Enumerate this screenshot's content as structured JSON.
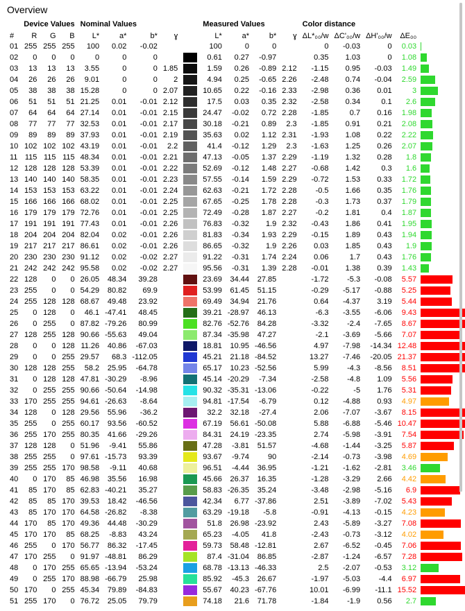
{
  "title": "Overview",
  "headers": {
    "groups": {
      "device": "Device Values",
      "nominal": "Nominal Values",
      "measured": "Measured Values",
      "dist": "Color distance"
    },
    "cols": {
      "num": "#",
      "r": "R",
      "g": "G",
      "b": "B",
      "nL": "L*",
      "na": "a*",
      "nb": "b*",
      "ng": "ɣ",
      "mL": "L*",
      "ma": "a*",
      "mb": "b*",
      "mg": "ɣ",
      "dL": "ΔL*₀₀/w",
      "dC": "ΔC'₀₀/w",
      "dH": "ΔH'₀₀/w",
      "dE": "ΔE₀₀"
    }
  },
  "bar": {
    "max": 22,
    "base_width": 180,
    "colors": {
      "green": "#2fd82f",
      "red": "#ff0000",
      "orange": "#ff9c00"
    }
  },
  "rows": [
    {
      "n": "01",
      "r": 255,
      "g": 255,
      "b": 255,
      "nL": "100",
      "na": "0.02",
      "nb": "-0.02",
      "ng": "",
      "sw": "#ffffff",
      "mL": "100",
      "ma": "0",
      "mb": "0",
      "mg": "",
      "dL": "0",
      "dC": "-0.03",
      "dH": "0",
      "dE": "0.03",
      "bc": "green",
      "bv": 0.03
    },
    {
      "n": "02",
      "r": 0,
      "g": 0,
      "b": 0,
      "nL": "0",
      "na": "0",
      "nb": "0",
      "ng": "",
      "sw": "#000000",
      "mL": "0.61",
      "ma": "0.27",
      "mb": "-0.97",
      "mg": "",
      "dL": "0.35",
      "dC": "1.03",
      "dH": "0",
      "dE": "1.08",
      "bc": "green",
      "bv": 1.08
    },
    {
      "n": "03",
      "r": 13,
      "g": 13,
      "b": 13,
      "nL": "3.55",
      "na": "0",
      "nb": "0",
      "ng": "1.85",
      "sw": "#0b0b0b",
      "mL": "1.59",
      "ma": "0.26",
      "mb": "-0.89",
      "mg": "2.12",
      "dL": "-1.15",
      "dC": "0.95",
      "dH": "-0.03",
      "dE": "1.49",
      "bc": "green",
      "bv": 1.49
    },
    {
      "n": "04",
      "r": 26,
      "g": 26,
      "b": 26,
      "nL": "9.01",
      "na": "0",
      "nb": "0",
      "ng": "2",
      "sw": "#161616",
      "mL": "4.94",
      "ma": "0.25",
      "mb": "-0.65",
      "mg": "2.26",
      "dL": "-2.48",
      "dC": "0.74",
      "dH": "-0.04",
      "dE": "2.59",
      "bc": "green",
      "bv": 2.59
    },
    {
      "n": "05",
      "r": 38,
      "g": 38,
      "b": 38,
      "nL": "15.28",
      "na": "0",
      "nb": "0",
      "ng": "2.07",
      "sw": "#222222",
      "mL": "10.65",
      "ma": "0.22",
      "mb": "-0.16",
      "mg": "2.33",
      "dL": "-2.98",
      "dC": "0.36",
      "dH": "0.01",
      "dE": "3",
      "bc": "green",
      "bv": 3
    },
    {
      "n": "06",
      "r": 51,
      "g": 51,
      "b": 51,
      "nL": "21.25",
      "na": "0.01",
      "nb": "-0.01",
      "ng": "2.12",
      "sw": "#2e2e2e",
      "mL": "17.5",
      "ma": "0.03",
      "mb": "0.35",
      "mg": "2.32",
      "dL": "-2.58",
      "dC": "0.34",
      "dH": "0.1",
      "dE": "2.6",
      "bc": "green",
      "bv": 2.6
    },
    {
      "n": "07",
      "r": 64,
      "g": 64,
      "b": 64,
      "nL": "27.14",
      "na": "0.01",
      "nb": "-0.01",
      "ng": "2.15",
      "sw": "#3a3a3a",
      "mL": "24.47",
      "ma": "-0.02",
      "mb": "0.72",
      "mg": "2.28",
      "dL": "-1.85",
      "dC": "0.7",
      "dH": "0.16",
      "dE": "1.98",
      "bc": "green",
      "bv": 1.98
    },
    {
      "n": "08",
      "r": 77,
      "g": 77,
      "b": 77,
      "nL": "32.53",
      "na": "0.01",
      "nb": "-0.01",
      "ng": "2.17",
      "sw": "#474747",
      "mL": "30.18",
      "ma": "-0.21",
      "mb": "0.89",
      "mg": "2.3",
      "dL": "-1.85",
      "dC": "0.91",
      "dH": "0.21",
      "dE": "2.08",
      "bc": "green",
      "bv": 2.08
    },
    {
      "n": "09",
      "r": 89,
      "g": 89,
      "b": 89,
      "nL": "37.93",
      "na": "0.01",
      "nb": "-0.01",
      "ng": "2.19",
      "sw": "#535353",
      "mL": "35.63",
      "ma": "0.02",
      "mb": "1.12",
      "mg": "2.31",
      "dL": "-1.93",
      "dC": "1.08",
      "dH": "0.22",
      "dE": "2.22",
      "bc": "green",
      "bv": 2.22
    },
    {
      "n": "10",
      "r": 102,
      "g": 102,
      "b": 102,
      "nL": "43.19",
      "na": "0.01",
      "nb": "-0.01",
      "ng": "2.2",
      "sw": "#606060",
      "mL": "41.4",
      "ma": "-0.12",
      "mb": "1.29",
      "mg": "2.3",
      "dL": "-1.63",
      "dC": "1.25",
      "dH": "0.26",
      "dE": "2.07",
      "bc": "green",
      "bv": 2.07
    },
    {
      "n": "11",
      "r": 115,
      "g": 115,
      "b": 115,
      "nL": "48.34",
      "na": "0.01",
      "nb": "-0.01",
      "ng": "2.21",
      "sw": "#6d6d6d",
      "mL": "47.13",
      "ma": "-0.05",
      "mb": "1.37",
      "mg": "2.29",
      "dL": "-1.19",
      "dC": "1.32",
      "dH": "0.28",
      "dE": "1.8",
      "bc": "green",
      "bv": 1.8
    },
    {
      "n": "12",
      "r": 128,
      "g": 128,
      "b": 128,
      "nL": "53.39",
      "na": "0.01",
      "nb": "-0.01",
      "ng": "2.22",
      "sw": "#7b7b7b",
      "mL": "52.69",
      "ma": "-0.12",
      "mb": "1.48",
      "mg": "2.27",
      "dL": "-0.68",
      "dC": "1.42",
      "dH": "0.3",
      "dE": "1.6",
      "bc": "green",
      "bv": 1.6
    },
    {
      "n": "13",
      "r": 140,
      "g": 140,
      "b": 140,
      "nL": "58.35",
      "na": "0.01",
      "nb": "-0.01",
      "ng": "2.23",
      "sw": "#898989",
      "mL": "57.55",
      "ma": "-0.14",
      "mb": "1.59",
      "mg": "2.29",
      "dL": "-0.72",
      "dC": "1.53",
      "dH": "0.33",
      "dE": "1.72",
      "bc": "green",
      "bv": 1.72
    },
    {
      "n": "14",
      "r": 153,
      "g": 153,
      "b": 153,
      "nL": "63.22",
      "na": "0.01",
      "nb": "-0.01",
      "ng": "2.24",
      "sw": "#979797",
      "mL": "62.63",
      "ma": "-0.21",
      "mb": "1.72",
      "mg": "2.28",
      "dL": "-0.5",
      "dC": "1.66",
      "dH": "0.35",
      "dE": "1.76",
      "bc": "green",
      "bv": 1.76
    },
    {
      "n": "15",
      "r": 166,
      "g": 166,
      "b": 166,
      "nL": "68.02",
      "na": "0.01",
      "nb": "-0.01",
      "ng": "2.25",
      "sw": "#a5a5a5",
      "mL": "67.65",
      "ma": "-0.25",
      "mb": "1.78",
      "mg": "2.28",
      "dL": "-0.3",
      "dC": "1.73",
      "dH": "0.37",
      "dE": "1.79",
      "bc": "green",
      "bv": 1.79
    },
    {
      "n": "16",
      "r": 179,
      "g": 179,
      "b": 179,
      "nL": "72.76",
      "na": "0.01",
      "nb": "-0.01",
      "ng": "2.25",
      "sw": "#b3b3b3",
      "mL": "72.49",
      "ma": "-0.28",
      "mb": "1.87",
      "mg": "2.27",
      "dL": "-0.2",
      "dC": "1.81",
      "dH": "0.4",
      "dE": "1.87",
      "bc": "green",
      "bv": 1.87
    },
    {
      "n": "17",
      "r": 191,
      "g": 191,
      "b": 191,
      "nL": "77.43",
      "na": "0.01",
      "nb": "-0.01",
      "ng": "2.26",
      "sw": "#c1c1c1",
      "mL": "76.83",
      "ma": "-0.32",
      "mb": "1.9",
      "mg": "2.32",
      "dL": "-0.43",
      "dC": "1.86",
      "dH": "0.41",
      "dE": "1.95",
      "bc": "green",
      "bv": 1.95
    },
    {
      "n": "18",
      "r": 204,
      "g": 204,
      "b": 204,
      "nL": "82.04",
      "na": "0.02",
      "nb": "-0.01",
      "ng": "2.26",
      "sw": "#cfcfcf",
      "mL": "81.83",
      "ma": "-0.34",
      "mb": "1.93",
      "mg": "2.29",
      "dL": "-0.15",
      "dC": "1.89",
      "dH": "0.43",
      "dE": "1.94",
      "bc": "green",
      "bv": 1.94
    },
    {
      "n": "19",
      "r": 217,
      "g": 217,
      "b": 217,
      "nL": "86.61",
      "na": "0.02",
      "nb": "-0.01",
      "ng": "2.26",
      "sw": "#dddddd",
      "mL": "86.65",
      "ma": "-0.32",
      "mb": "1.9",
      "mg": "2.26",
      "dL": "0.03",
      "dC": "1.85",
      "dH": "0.43",
      "dE": "1.9",
      "bc": "green",
      "bv": 1.9
    },
    {
      "n": "20",
      "r": 230,
      "g": 230,
      "b": 230,
      "nL": "91.12",
      "na": "0.02",
      "nb": "-0.02",
      "ng": "2.27",
      "sw": "#ebebeb",
      "mL": "91.22",
      "ma": "-0.31",
      "mb": "1.74",
      "mg": "2.24",
      "dL": "0.06",
      "dC": "1.7",
      "dH": "0.43",
      "dE": "1.76",
      "bc": "green",
      "bv": 1.76
    },
    {
      "n": "21",
      "r": 242,
      "g": 242,
      "b": 242,
      "nL": "95.58",
      "na": "0.02",
      "nb": "-0.02",
      "ng": "2.27",
      "sw": "#f6f6f6",
      "mL": "95.56",
      "ma": "-0.31",
      "mb": "1.39",
      "mg": "2.28",
      "dL": "-0.01",
      "dC": "1.38",
      "dH": "0.39",
      "dE": "1.43",
      "bc": "green",
      "bv": 1.43
    },
    {
      "n": "22",
      "r": 128,
      "g": 0,
      "b": 0,
      "nL": "26.05",
      "na": "48.34",
      "nb": "39.28",
      "ng": "",
      "sw": "#611010",
      "mL": "23.69",
      "ma": "34.44",
      "mb": "27.85",
      "mg": "",
      "dL": "-1.72",
      "dC": "-5.3",
      "dH": "-0.08",
      "dE": "5.57",
      "bc": "red",
      "bv": 5.57
    },
    {
      "n": "23",
      "r": 255,
      "g": 0,
      "b": 0,
      "nL": "54.29",
      "na": "80.82",
      "nb": "69.9",
      "ng": "",
      "sw": "#e02020",
      "mL": "53.99",
      "ma": "61.45",
      "mb": "51.15",
      "mg": "",
      "dL": "-0.29",
      "dC": "-5.17",
      "dH": "-0.88",
      "dE": "5.25",
      "bc": "red",
      "bv": 5.25
    },
    {
      "n": "24",
      "r": 255,
      "g": 128,
      "b": 128,
      "nL": "68.67",
      "na": "49.48",
      "nb": "23.92",
      "ng": "",
      "sw": "#ef7369",
      "mL": "69.49",
      "ma": "34.94",
      "mb": "21.76",
      "mg": "",
      "dL": "0.64",
      "dC": "-4.37",
      "dH": "3.19",
      "dE": "5.44",
      "bc": "red",
      "bv": 5.44
    },
    {
      "n": "25",
      "r": 0,
      "g": 128,
      "b": 0,
      "nL": "46.1",
      "na": "-47.41",
      "nb": "48.45",
      "ng": "",
      "sw": "#246e17",
      "mL": "39.21",
      "ma": "-28.97",
      "mb": "46.13",
      "mg": "",
      "dL": "-6.3",
      "dC": "-3.55",
      "dH": "-6.06",
      "dE": "9.43",
      "bc": "red",
      "bv": 9.43
    },
    {
      "n": "26",
      "r": 0,
      "g": 255,
      "b": 0,
      "nL": "87.82",
      "na": "-79.26",
      "nb": "80.99",
      "ng": "",
      "sw": "#4be023",
      "mL": "82.76",
      "ma": "-52.76",
      "mb": "84.28",
      "mg": "",
      "dL": "-3.32",
      "dC": "-2.4",
      "dH": "-7.65",
      "dE": "8.67",
      "bc": "red",
      "bv": 8.67
    },
    {
      "n": "27",
      "r": 128,
      "g": 255,
      "b": 128,
      "nL": "90.66",
      "na": "-55.63",
      "nb": "49.04",
      "ng": "",
      "sw": "#8cea6e",
      "mL": "87.34",
      "ma": "-35.98",
      "mb": "47.27",
      "mg": "",
      "dL": "-2.1",
      "dC": "-3.69",
      "dH": "-5.66",
      "dE": "7.07",
      "bc": "red",
      "bv": 7.07
    },
    {
      "n": "28",
      "r": 0,
      "g": 0,
      "b": 128,
      "nL": "11.26",
      "na": "40.86",
      "nb": "-67.03",
      "ng": "",
      "sw": "#0e1867",
      "mL": "18.81",
      "ma": "10.95",
      "mb": "-46.56",
      "mg": "",
      "dL": "4.97",
      "dC": "-7.98",
      "dH": "-14.34",
      "dE": "12.48",
      "bc": "red",
      "bv": 12.48
    },
    {
      "n": "29",
      "r": 0,
      "g": 0,
      "b": 255,
      "nL": "29.57",
      "na": "68.3",
      "nb": "-112.05",
      "ng": "",
      "sw": "#2038d2",
      "mL": "45.21",
      "ma": "21.18",
      "mb": "-84.52",
      "mg": "",
      "dL": "13.27",
      "dC": "-7.46",
      "dH": "-20.05",
      "dE": "21.37",
      "bc": "red",
      "bv": 21.37
    },
    {
      "n": "30",
      "r": 128,
      "g": 128,
      "b": 255,
      "nL": "58.2",
      "na": "25.95",
      "nb": "-64.78",
      "ng": "",
      "sw": "#7485e8",
      "mL": "65.17",
      "ma": "10.23",
      "mb": "-52.56",
      "mg": "",
      "dL": "5.99",
      "dC": "-4.3",
      "dH": "-8.56",
      "dE": "8.51",
      "bc": "red",
      "bv": 8.51
    },
    {
      "n": "31",
      "r": 0,
      "g": 128,
      "b": 128,
      "nL": "47.81",
      "na": "-30.29",
      "nb": "-8.96",
      "ng": "",
      "sw": "#127174",
      "mL": "45.14",
      "ma": "-20.29",
      "mb": "-7.34",
      "mg": "",
      "dL": "-2.58",
      "dC": "-4.8",
      "dH": "1.09",
      "dE": "5.56",
      "bc": "red",
      "bv": 5.56
    },
    {
      "n": "32",
      "r": 0,
      "g": 255,
      "b": 255,
      "nL": "90.66",
      "na": "-50.64",
      "nb": "-14.98",
      "ng": "",
      "sw": "#26e2e6",
      "mL": "90.32",
      "ma": "-35.31",
      "mb": "-13.06",
      "mg": "",
      "dL": "-0.22",
      "dC": "-5",
      "dH": "1.76",
      "dE": "5.31",
      "bc": "red",
      "bv": 5.31
    },
    {
      "n": "33",
      "r": 170,
      "g": 255,
      "b": 255,
      "nL": "94.61",
      "na": "-26.63",
      "nb": "-8.64",
      "ng": "",
      "sw": "#a6eff1",
      "mL": "94.81",
      "ma": "-17.54",
      "mb": "-6.79",
      "mg": "",
      "dL": "0.12",
      "dC": "-4.88",
      "dH": "0.93",
      "dE": "4.97",
      "bc": "orange",
      "bv": 4.97
    },
    {
      "n": "34",
      "r": 128,
      "g": 0,
      "b": 128,
      "nL": "29.56",
      "na": "55.96",
      "nb": "-36.2",
      "ng": "",
      "sw": "#6c1672",
      "mL": "32.2",
      "ma": "32.18",
      "mb": "-27.4",
      "mg": "",
      "dL": "2.06",
      "dC": "-7.07",
      "dH": "-3.67",
      "dE": "8.15",
      "bc": "red",
      "bv": 8.15
    },
    {
      "n": "35",
      "r": 255,
      "g": 0,
      "b": 255,
      "nL": "60.17",
      "na": "93.56",
      "nb": "-60.52",
      "ng": "",
      "sw": "#dc2fe2",
      "mL": "67.19",
      "ma": "56.61",
      "mb": "-50.08",
      "mg": "",
      "dL": "5.88",
      "dC": "-6.88",
      "dH": "-5.46",
      "dE": "10.47",
      "bc": "red",
      "bv": 10.47
    },
    {
      "n": "36",
      "r": 255,
      "g": 170,
      "b": 255,
      "nL": "80.35",
      "na": "41.66",
      "nb": "-29.26",
      "ng": "",
      "sw": "#edacef",
      "mL": "84.31",
      "ma": "24.19",
      "mb": "-23.35",
      "mg": "",
      "dL": "2.74",
      "dC": "-5.98",
      "dH": "-3.91",
      "dE": "7.54",
      "bc": "red",
      "bv": 7.54
    },
    {
      "n": "37",
      "r": 128,
      "g": 128,
      "b": 0,
      "nL": "51.96",
      "na": "-9.41",
      "nb": "55.86",
      "ng": "",
      "sw": "#676e15",
      "mL": "47.28",
      "ma": "-3.81",
      "mb": "51.57",
      "mg": "",
      "dL": "-4.68",
      "dC": "-1.44",
      "dH": "-3.25",
      "dE": "5.87",
      "bc": "red",
      "bv": 5.87
    },
    {
      "n": "38",
      "r": 255,
      "g": 255,
      "b": 0,
      "nL": "97.61",
      "na": "-15.73",
      "nb": "93.39",
      "ng": "",
      "sw": "#e4e81b",
      "mL": "93.67",
      "ma": "-9.74",
      "mb": "90",
      "mg": "",
      "dL": "-2.14",
      "dC": "-0.73",
      "dH": "-3.98",
      "dE": "4.69",
      "bc": "orange",
      "bv": 4.69
    },
    {
      "n": "39",
      "r": 255,
      "g": 255,
      "b": 170,
      "nL": "98.58",
      "na": "-9.11",
      "nb": "40.68",
      "ng": "",
      "sw": "#edf09c",
      "mL": "96.51",
      "ma": "-4.44",
      "mb": "36.95",
      "mg": "",
      "dL": "-1.21",
      "dC": "-1.62",
      "dH": "-2.81",
      "dE": "3.46",
      "bc": "green",
      "bv": 3.46
    },
    {
      "n": "40",
      "r": 0,
      "g": 170,
      "b": 85,
      "nL": "46.98",
      "na": "35.56",
      "nb": "16.98",
      "ng": "",
      "sw": "#1a9852",
      "mL": "45.66",
      "ma": "26.37",
      "mb": "16.35",
      "mg": "",
      "dL": "-1.28",
      "dC": "-3.29",
      "dH": "2.66",
      "dE": "4.42",
      "bc": "orange",
      "bv": 4.42
    },
    {
      "n": "41",
      "r": 85,
      "g": 170,
      "b": 85,
      "nL": "62.83",
      "na": "-40.21",
      "nb": "35.27",
      "ng": "",
      "sw": "#589c4a",
      "mL": "58.83",
      "ma": "-26.35",
      "mb": "35.24",
      "mg": "",
      "dL": "-3.48",
      "dC": "-2.98",
      "dH": "-5.16",
      "dE": "6.9",
      "bc": "red",
      "bv": 6.9
    },
    {
      "n": "42",
      "r": 85,
      "g": 85,
      "b": 170,
      "nL": "39.53",
      "na": "18.42",
      "nb": "-46.56",
      "ng": "",
      "sw": "#4c569d",
      "mL": "42.34",
      "ma": "6.77",
      "mb": "-37.86",
      "mg": "",
      "dL": "2.51",
      "dC": "-3.89",
      "dH": "-7.02",
      "dE": "5.43",
      "bc": "red",
      "bv": 5.43
    },
    {
      "n": "43",
      "r": 85,
      "g": 170,
      "b": 170,
      "nL": "64.58",
      "na": "-26.82",
      "nb": "-8.38",
      "ng": "",
      "sw": "#519ca1",
      "mL": "63.29",
      "ma": "-19.18",
      "mb": "-5.8",
      "mg": "",
      "dL": "-0.91",
      "dC": "-4.13",
      "dH": "-0.15",
      "dE": "4.23",
      "bc": "orange",
      "bv": 4.23
    },
    {
      "n": "44",
      "r": 170,
      "g": 85,
      "b": 170,
      "nL": "49.36",
      "na": "44.48",
      "nb": "-30.29",
      "ng": "",
      "sw": "#a1549f",
      "mL": "51.8",
      "ma": "26.98",
      "mb": "-23.92",
      "mg": "",
      "dL": "2.43",
      "dC": "-5.89",
      "dH": "-3.27",
      "dE": "7.08",
      "bc": "red",
      "bv": 7.08
    },
    {
      "n": "45",
      "r": 170,
      "g": 170,
      "b": 85,
      "nL": "68.25",
      "na": "-8.83",
      "nb": "43.24",
      "ng": "",
      "sw": "#a4a852",
      "mL": "65.23",
      "ma": "-4.05",
      "mb": "41.8",
      "mg": "",
      "dL": "-2.43",
      "dC": "-0.73",
      "dH": "-3.12",
      "dE": "4.02",
      "bc": "orange",
      "bv": 4.02
    },
    {
      "n": "46",
      "r": 255,
      "g": 0,
      "b": 170,
      "nL": "56.77",
      "na": "86.32",
      "nb": "-17.45",
      "ng": "",
      "sw": "#e3209a",
      "mL": "59.73",
      "ma": "58.48",
      "mb": "-12.81",
      "mg": "",
      "dL": "2.67",
      "dC": "-6.52",
      "dH": "-0.45",
      "dE": "7.06",
      "bc": "red",
      "bv": 7.06
    },
    {
      "n": "47",
      "r": 170,
      "g": 255,
      "b": 0,
      "nL": "91.97",
      "na": "-48.81",
      "nb": "86.29",
      "ng": "",
      "sw": "#a5e326",
      "mL": "87.4",
      "ma": "-31.04",
      "mb": "86.85",
      "mg": "",
      "dL": "-2.87",
      "dC": "-1.24",
      "dH": "-6.57",
      "dE": "7.28",
      "bc": "red",
      "bv": 7.28
    },
    {
      "n": "48",
      "r": 0,
      "g": 170,
      "b": 255,
      "nL": "65.65",
      "na": "-13.94",
      "nb": "-53.24",
      "ng": "",
      "sw": "#1aa0e4",
      "mL": "68.78",
      "ma": "-13.13",
      "mb": "-46.33",
      "mg": "",
      "dL": "2.5",
      "dC": "-2.07",
      "dH": "-0.53",
      "dE": "3.12",
      "bc": "green",
      "bv": 3.12
    },
    {
      "n": "49",
      "r": 0,
      "g": 255,
      "b": 170,
      "nL": "88.98",
      "na": "-66.79",
      "nb": "25.98",
      "ng": "",
      "sw": "#26e099",
      "mL": "85.92",
      "ma": "-45.3",
      "mb": "26.67",
      "mg": "",
      "dL": "-1.97",
      "dC": "-5.03",
      "dH": "-4.4",
      "dE": "6.97",
      "bc": "red",
      "bv": 6.97
    },
    {
      "n": "50",
      "r": 170,
      "g": 0,
      "b": 255,
      "nL": "45.34",
      "na": "79.89",
      "nb": "-84.83",
      "ng": "",
      "sw": "#972ade",
      "mL": "55.67",
      "ma": "40.23",
      "mb": "-67.76",
      "mg": "",
      "dL": "10.01",
      "dC": "-6.99",
      "dH": "-11.1",
      "dE": "15.52",
      "bc": "red",
      "bv": 15.52
    },
    {
      "n": "51",
      "r": 255,
      "g": 170,
      "b": 0,
      "nL": "76.72",
      "na": "25.05",
      "nb": "79.79",
      "ng": "",
      "sw": "#e89e1d",
      "mL": "74.18",
      "ma": "21.6",
      "mb": "71.78",
      "mg": "",
      "dL": "-1.84",
      "dC": "-1.9",
      "dH": "0.56",
      "dE": "2.7",
      "bc": "green",
      "bv": 2.7
    }
  ]
}
